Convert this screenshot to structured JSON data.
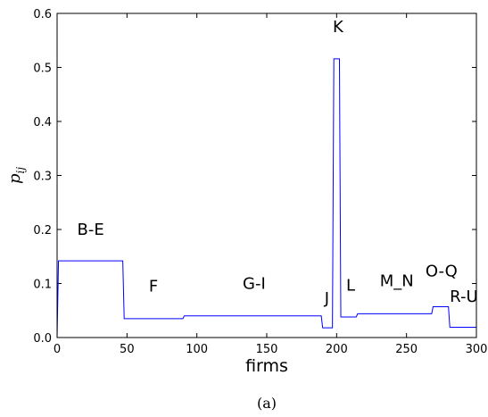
{
  "chart_data": {
    "type": "line",
    "xlabel": "firms",
    "ylabel": {
      "base": "p",
      "subscript": "ij"
    },
    "xlim": [
      0,
      300
    ],
    "ylim": [
      0.0,
      0.6
    ],
    "xticks": [
      0,
      50,
      100,
      150,
      200,
      250,
      300
    ],
    "yticks": [
      0.0,
      0.1,
      0.2,
      0.3,
      0.4,
      0.5,
      0.6
    ],
    "ytick_labels": [
      "0.0",
      "0.1",
      "0.2",
      "0.3",
      "0.4",
      "0.5",
      "0.6"
    ],
    "grid": false,
    "line_color": "#0000ff",
    "series": [
      {
        "x": [
          0,
          1,
          47,
          48,
          90,
          91,
          189,
          190,
          197,
          198,
          202,
          203,
          214,
          215,
          268,
          269,
          280,
          281,
          300
        ],
        "y": [
          0.0,
          0.142,
          0.142,
          0.035,
          0.035,
          0.04,
          0.04,
          0.018,
          0.018,
          0.516,
          0.516,
          0.038,
          0.038,
          0.044,
          0.044,
          0.057,
          0.057,
          0.019,
          0.019
        ]
      }
    ],
    "annotations": [
      {
        "text": "B-E",
        "x": 24,
        "y": 0.19
      },
      {
        "text": "F",
        "x": 69,
        "y": 0.085
      },
      {
        "text": "G-I",
        "x": 141,
        "y": 0.09
      },
      {
        "text": "J",
        "x": 193,
        "y": 0.063
      },
      {
        "text": "K",
        "x": 201,
        "y": 0.565
      },
      {
        "text": "L",
        "x": 210,
        "y": 0.087
      },
      {
        "text": "M_N",
        "x": 243,
        "y": 0.095
      },
      {
        "text": "O-Q",
        "x": 275,
        "y": 0.113
      },
      {
        "text": "R-U",
        "x": 291,
        "y": 0.066
      }
    ]
  },
  "caption": "(a)"
}
